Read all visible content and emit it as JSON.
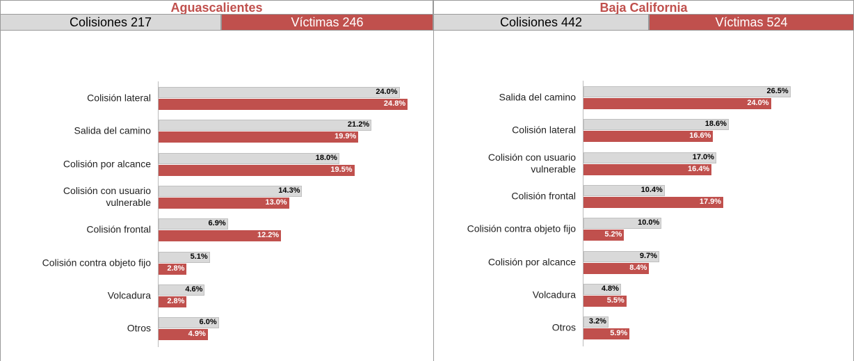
{
  "chart_data": [
    {
      "type": "bar",
      "orientation": "horizontal",
      "title": "Aguascalientes",
      "categories": [
        "Colisión lateral",
        "Salida del camino",
        "Colisión por alcance",
        "Colisión con usuario\nvulnerable",
        "Colisión frontal",
        "Colisión contra objeto fijo",
        "Volcadura",
        "Otros"
      ],
      "series": [
        {
          "name": "Colisiones 217",
          "color": "#d9d9d9",
          "values": [
            24.0,
            21.2,
            18.0,
            14.3,
            6.9,
            5.1,
            4.6,
            6.0
          ],
          "value_labels": [
            "24.0%",
            "21.2%",
            "18.0%",
            "14.3%",
            "6.9%",
            "5.1%",
            "4.6%",
            "6.0%"
          ]
        },
        {
          "name": "Víctimas 246",
          "color": "#c0504d",
          "values": [
            24.8,
            19.9,
            19.5,
            13.0,
            12.2,
            2.8,
            2.8,
            4.9
          ],
          "value_labels": [
            "24.8%",
            "19.9%",
            "19.5%",
            "13.0%",
            "12.2%",
            "2.8%",
            "2.8%",
            "4.9%"
          ]
        }
      ],
      "xlim": [
        0,
        25
      ]
    },
    {
      "type": "bar",
      "orientation": "horizontal",
      "title": "Baja California",
      "categories": [
        "Salida del camino",
        "Colisión lateral",
        "Colisión con usuario\nvulnerable",
        "Colisión frontal",
        "Colisión contra objeto fijo",
        "Colisión por alcance",
        "Volcadura",
        "Otros"
      ],
      "series": [
        {
          "name": "Colisiones 442",
          "color": "#d9d9d9",
          "values": [
            26.5,
            18.6,
            17.0,
            10.4,
            10.0,
            9.7,
            4.8,
            3.2
          ],
          "value_labels": [
            "26.5%",
            "18.6%",
            "17.0%",
            "10.4%",
            "10.0%",
            "9.7%",
            "4.8%",
            "3.2%"
          ]
        },
        {
          "name": "Víctimas 524",
          "color": "#c0504d",
          "values": [
            24.0,
            16.6,
            16.4,
            17.9,
            5.2,
            8.4,
            5.5,
            5.9
          ],
          "value_labels": [
            "24.0%",
            "16.6%",
            "16.4%",
            "17.9%",
            "5.2%",
            "8.4%",
            "5.5%",
            "5.9%"
          ]
        }
      ],
      "xlim": [
        0,
        30
      ]
    }
  ]
}
